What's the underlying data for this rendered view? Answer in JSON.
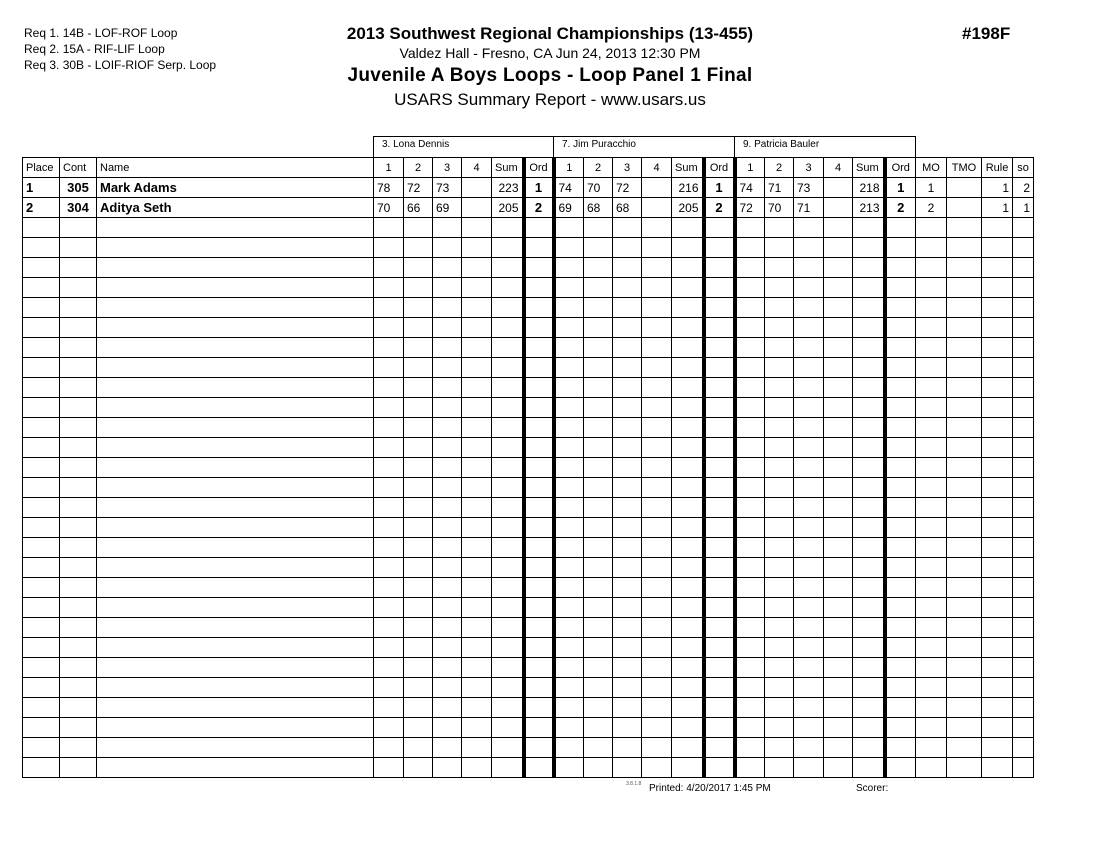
{
  "requirements": [
    "Req  1.  14B - LOF-ROF Loop",
    "Req  2.  15A - RIF-LIF Loop",
    "Req  3.  30B - LOIF-RIOF Serp. Loop"
  ],
  "header": {
    "title": "2013 Southwest Regional Championships (13-455)",
    "venue": "Valdez Hall - Fresno, CA  Jun 24, 2013  12:30 PM",
    "event": "Juvenile A Boys Loops - Loop Panel 1 Final",
    "report": "USARS Summary Report - www.usars.us",
    "event_number": "#198F"
  },
  "judges": [
    "3.  Lona Dennis",
    "7.  Jim Puracchio",
    "9.  Patricia Bauler"
  ],
  "columns": {
    "place": "Place",
    "cont": "Cont",
    "name": "Name",
    "judge_cols": [
      "1",
      "2",
      "3",
      "4",
      "Sum",
      "Ord"
    ],
    "mo": "MO",
    "tmo": "TMO",
    "rule": "Rule",
    "so": "so"
  },
  "rows": [
    {
      "place": "1",
      "cont": "305",
      "name": "Mark Adams",
      "judges": [
        [
          "78",
          "72",
          "73",
          "",
          "223",
          "1"
        ],
        [
          "74",
          "70",
          "72",
          "",
          "216",
          "1"
        ],
        [
          "74",
          "71",
          "73",
          "",
          "218",
          "1"
        ]
      ],
      "mo": "1",
      "tmo": "",
      "rule": "1",
      "so": "2"
    },
    {
      "place": "2",
      "cont": "304",
      "name": "Aditya Seth",
      "judges": [
        [
          "70",
          "66",
          "69",
          "",
          "205",
          "2"
        ],
        [
          "69",
          "68",
          "68",
          "",
          "205",
          "2"
        ],
        [
          "72",
          "70",
          "71",
          "",
          "213",
          "2"
        ]
      ],
      "mo": "2",
      "tmo": "",
      "rule": "1",
      "so": "1"
    }
  ],
  "footer": {
    "version": "3.8.1.8",
    "printed": "Printed:  4/20/2017  1:45 PM",
    "scorer": "Scorer:"
  }
}
